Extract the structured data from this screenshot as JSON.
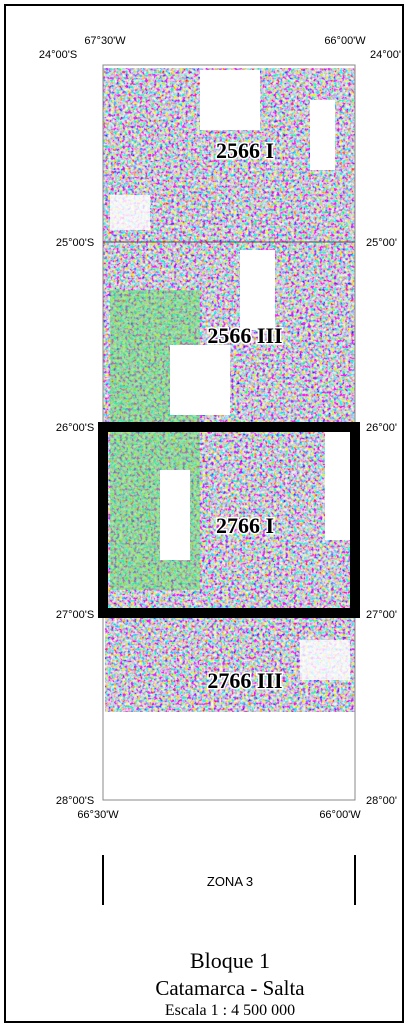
{
  "map": {
    "top_labels": [
      "67°30'W",
      "66°00'W"
    ],
    "bottom_labels": [
      "66°30'W",
      "66°00'W"
    ],
    "left_labels": [
      "24°00'S",
      "25°00'S",
      "26°00'S",
      "27°00'S",
      "28°00'S"
    ],
    "right_labels": [
      "24°00'",
      "25°00'",
      "26°00'",
      "27°00'",
      "28°00'"
    ],
    "sheets": [
      "2566 I",
      "2566 III",
      "2766 I",
      "2766 III"
    ],
    "zone": "ZONA 3",
    "title": "Bloque 1",
    "region": "Catamarca - Salta",
    "scale": "Escala 1 : 4 500 000"
  }
}
